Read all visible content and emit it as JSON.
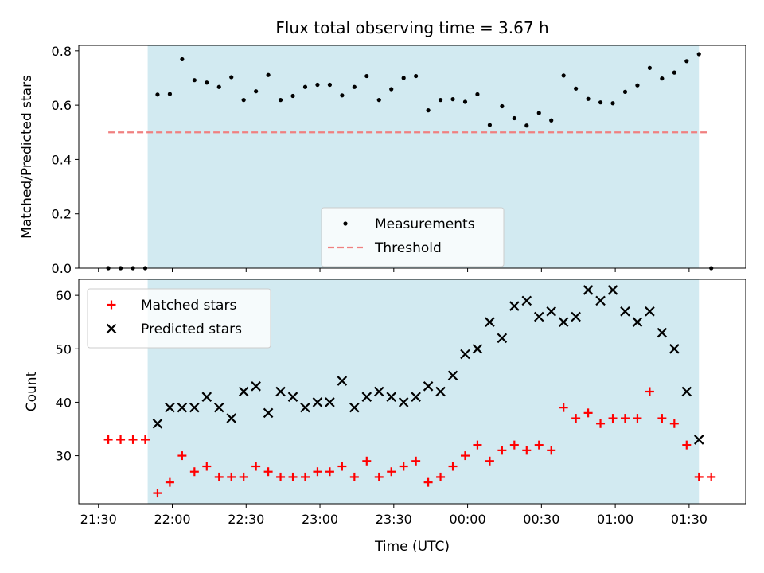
{
  "chart_data": [
    {
      "type": "scatter",
      "title": "Flux total observing time = 3.67 h",
      "ylabel": "Matched/Predicted stars",
      "xlabel": "",
      "xlim": [
        "21:22",
        "01:53"
      ],
      "ylim": [
        0,
        0.82
      ],
      "yticks": [
        0.0,
        0.2,
        0.4,
        0.6,
        0.8
      ],
      "ytick_labels": [
        "0.0",
        "0.2",
        "0.4",
        "0.6",
        "0.8"
      ],
      "xticks": [
        "21:30",
        "22:00",
        "22:30",
        "23:00",
        "23:30",
        "00:00",
        "00:30",
        "01:00",
        "01:30"
      ],
      "shaded_interval": [
        "21:50",
        "01:34"
      ],
      "shaded_color": "#add8e6",
      "grid": false,
      "legend_position": "lower center",
      "series": [
        {
          "name": "Measurements",
          "color": "#000000",
          "marker": "dot",
          "points": [
            [
              "21:34",
              0.0
            ],
            [
              "21:39",
              0.0
            ],
            [
              "21:44",
              0.0
            ],
            [
              "21:49",
              0.0
            ],
            [
              "21:54",
              0.639
            ],
            [
              "21:59",
              0.641
            ],
            [
              "22:04",
              0.769
            ],
            [
              "22:09",
              0.692
            ],
            [
              "22:14",
              0.683
            ],
            [
              "22:19",
              0.667
            ],
            [
              "22:24",
              0.703
            ],
            [
              "22:29",
              0.619
            ],
            [
              "22:34",
              0.651
            ],
            [
              "22:39",
              0.711
            ],
            [
              "22:44",
              0.619
            ],
            [
              "22:49",
              0.634
            ],
            [
              "22:54",
              0.667
            ],
            [
              "22:59",
              0.675
            ],
            [
              "23:04",
              0.675
            ],
            [
              "23:09",
              0.636
            ],
            [
              "23:14",
              0.667
            ],
            [
              "23:19",
              0.707
            ],
            [
              "23:24",
              0.619
            ],
            [
              "23:29",
              0.659
            ],
            [
              "23:34",
              0.7
            ],
            [
              "23:39",
              0.707
            ],
            [
              "23:44",
              0.581
            ],
            [
              "23:49",
              0.619
            ],
            [
              "23:54",
              0.622
            ],
            [
              "23:59",
              0.612
            ],
            [
              "00:04",
              0.64
            ],
            [
              "00:09",
              0.527
            ],
            [
              "00:14",
              0.596
            ],
            [
              "00:19",
              0.552
            ],
            [
              "00:24",
              0.525
            ],
            [
              "00:29",
              0.571
            ],
            [
              "00:34",
              0.544
            ],
            [
              "00:39",
              0.709
            ],
            [
              "00:44",
              0.661
            ],
            [
              "00:49",
              0.623
            ],
            [
              "00:54",
              0.61
            ],
            [
              "00:59",
              0.607
            ],
            [
              "01:04",
              0.649
            ],
            [
              "01:09",
              0.673
            ],
            [
              "01:14",
              0.737
            ],
            [
              "01:19",
              0.698
            ],
            [
              "01:24",
              0.72
            ],
            [
              "01:29",
              0.762
            ],
            [
              "01:34",
              0.788
            ],
            [
              "01:39",
              0.0
            ]
          ]
        },
        {
          "name": "Threshold",
          "color": "#f08080",
          "style": "dashed",
          "x": [
            "21:34",
            "01:38"
          ],
          "y": [
            0.5,
            0.5
          ]
        }
      ]
    },
    {
      "type": "scatter",
      "title": "",
      "ylabel": "Count",
      "xlabel": "Time (UTC)",
      "xlim": [
        "21:22",
        "01:53"
      ],
      "ylim": [
        21,
        63
      ],
      "yticks": [
        30,
        40,
        50,
        60
      ],
      "ytick_labels": [
        "30",
        "40",
        "50",
        "60"
      ],
      "xticks": [
        "21:30",
        "22:00",
        "22:30",
        "23:00",
        "23:30",
        "00:00",
        "00:30",
        "01:00",
        "01:30"
      ],
      "xtick_labels": [
        "21:30",
        "22:00",
        "22:30",
        "23:00",
        "23:30",
        "00:00",
        "00:30",
        "01:00",
        "01:30"
      ],
      "shaded_interval": [
        "21:50",
        "01:34"
      ],
      "shaded_color": "#add8e6",
      "grid": false,
      "legend_position": "upper left",
      "x": [
        "21:34",
        "21:39",
        "21:44",
        "21:49",
        "21:54",
        "21:59",
        "22:04",
        "22:09",
        "22:14",
        "22:19",
        "22:24",
        "22:29",
        "22:34",
        "22:39",
        "22:44",
        "22:49",
        "22:54",
        "22:59",
        "23:04",
        "23:09",
        "23:14",
        "23:19",
        "23:24",
        "23:29",
        "23:34",
        "23:39",
        "23:44",
        "23:49",
        "23:54",
        "23:59",
        "00:04",
        "00:09",
        "00:14",
        "00:19",
        "00:24",
        "00:29",
        "00:34",
        "00:39",
        "00:44",
        "00:49",
        "00:54",
        "00:59",
        "01:04",
        "01:09",
        "01:14",
        "01:19",
        "01:24",
        "01:29",
        "01:34",
        "01:39"
      ],
      "series": [
        {
          "name": "Matched stars",
          "color": "#ff0000",
          "marker": "plus",
          "values": [
            33,
            33,
            33,
            33,
            23,
            25,
            30,
            27,
            28,
            26,
            26,
            26,
            28,
            27,
            26,
            26,
            26,
            27,
            27,
            28,
            26,
            29,
            26,
            27,
            28,
            29,
            25,
            26,
            28,
            30,
            32,
            29,
            31,
            32,
            31,
            32,
            31,
            39,
            37,
            38,
            36,
            37,
            37,
            37,
            42,
            37,
            36,
            32,
            26,
            26
          ]
        },
        {
          "name": "Predicted stars",
          "color": "#000000",
          "marker": "x",
          "values": [
            null,
            null,
            null,
            null,
            36,
            39,
            39,
            39,
            41,
            39,
            37,
            42,
            43,
            38,
            42,
            41,
            39,
            40,
            40,
            44,
            39,
            41,
            42,
            41,
            40,
            41,
            43,
            42,
            45,
            49,
            50,
            55,
            52,
            58,
            59,
            56,
            57,
            55,
            56,
            61,
            59,
            61,
            57,
            55,
            57,
            53,
            50,
            42,
            33,
            null
          ]
        }
      ]
    }
  ]
}
